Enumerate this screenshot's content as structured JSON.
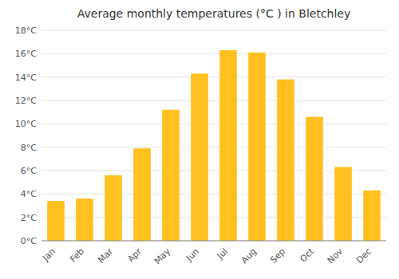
{
  "chart_data": {
    "type": "bar",
    "title": "Average monthly temperatures (°C ) in Bletchley",
    "categories": [
      "Jan",
      "Feb",
      "Mar",
      "Apr",
      "May",
      "Jun",
      "Jul",
      "Aug",
      "Sep",
      "Oct",
      "Nov",
      "Dec"
    ],
    "values": [
      3.4,
      3.6,
      5.6,
      7.9,
      11.2,
      14.3,
      16.3,
      16.1,
      13.8,
      10.6,
      6.3,
      4.3
    ],
    "color": "#FFC020",
    "ylim": [
      0,
      18
    ],
    "yticks": [
      {
        "value": 0,
        "label": "0°C"
      },
      {
        "value": 2,
        "label": "2°C"
      },
      {
        "value": 4,
        "label": "4°C"
      },
      {
        "value": 6,
        "label": "6°C"
      },
      {
        "value": 8,
        "label": "8°C"
      },
      {
        "value": 10,
        "label": "10°C"
      },
      {
        "value": 12,
        "label": "12°C"
      },
      {
        "value": 14,
        "label": "14°C"
      },
      {
        "value": 16,
        "label": "16°C"
      },
      {
        "value": 18,
        "label": "18°C"
      }
    ],
    "grid": true
  }
}
